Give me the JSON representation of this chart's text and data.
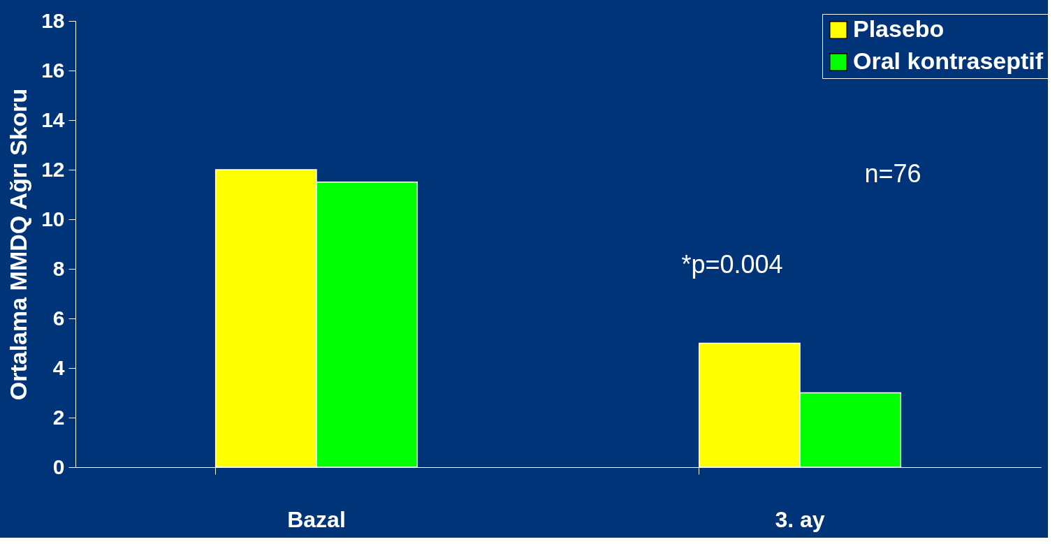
{
  "chart_data": {
    "type": "bar",
    "ylabel": "Ortalama MMDQ Ağrı Skoru",
    "categories": [
      "Bazal",
      "3. ay"
    ],
    "series": [
      {
        "name": "Plasebo",
        "color": "#ffff00",
        "values": [
          12,
          5
        ]
      },
      {
        "name": "Oral kontraseptif",
        "color": "#00ff00",
        "values": [
          11.5,
          3
        ]
      }
    ],
    "ylim": [
      0,
      18
    ],
    "yticks": [
      0,
      2,
      4,
      6,
      8,
      10,
      12,
      14,
      16,
      18
    ],
    "grid": false,
    "legend": "top right",
    "annotations": [
      "*p=0.004",
      "n=76"
    ]
  }
}
